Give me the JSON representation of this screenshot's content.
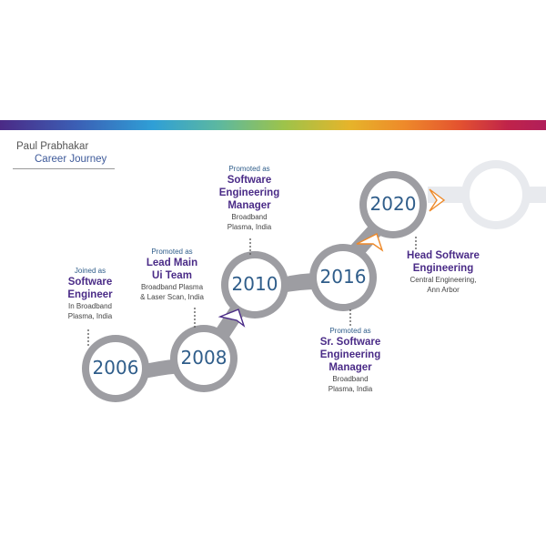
{
  "header": {
    "name": "Paul Prabhakar",
    "subtitle": "Career Journey"
  },
  "colors": {
    "ring": "#9d9da2",
    "ring_faded": "#e8eaee",
    "role_text": "#4a2b87",
    "year_text": "#2f5d8a"
  },
  "milestones": [
    {
      "year": "2006",
      "pre": "Joined as",
      "role": [
        "Software",
        "Engineer"
      ],
      "loc": [
        "In Broadband",
        "Plasma, India"
      ]
    },
    {
      "year": "2008",
      "pre": "Promoted as",
      "role": [
        "Lead Main",
        "Ui Team"
      ],
      "loc": [
        "Broadband Plasma",
        "& Laser Scan, India"
      ]
    },
    {
      "year": "2010",
      "pre": "Promoted as",
      "role": [
        "Software",
        "Engineering",
        "Manager"
      ],
      "loc": [
        "Broadband",
        "Plasma, India"
      ]
    },
    {
      "year": "2016",
      "pre": "Promoted as",
      "role": [
        "Sr. Software",
        "Engineering",
        "Manager"
      ],
      "loc": [
        "Broadband",
        "Plasma, India"
      ]
    },
    {
      "year": "2020",
      "pre": "",
      "role": [
        "Head Software",
        "Engineering"
      ],
      "loc": [
        "Central Engineering,",
        "Ann Arbor"
      ]
    }
  ]
}
